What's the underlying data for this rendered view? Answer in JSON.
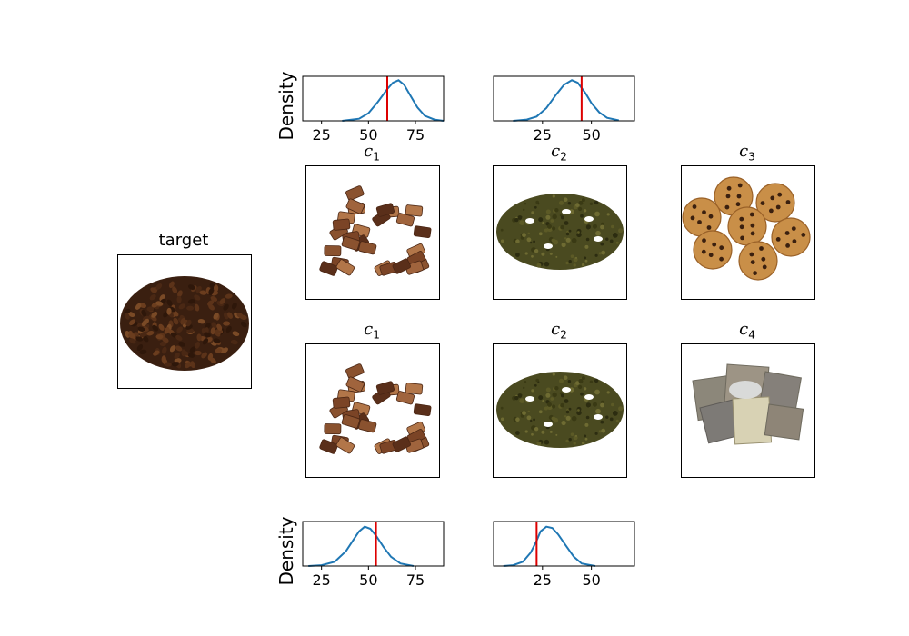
{
  "chart_data": [
    {
      "type": "line",
      "panel": "top-left",
      "ylabel": "Density",
      "xlabel": "",
      "xlim": [
        15,
        90
      ],
      "xticks": [
        25,
        50,
        75
      ],
      "series": [
        {
          "values": [
            [
              36,
              0.0
            ],
            [
              45,
              0.05
            ],
            [
              50,
              0.18
            ],
            [
              55,
              0.45
            ],
            [
              60,
              0.75
            ],
            [
              63,
              0.9
            ],
            [
              66,
              0.96
            ],
            [
              69,
              0.85
            ],
            [
              72,
              0.62
            ],
            [
              76,
              0.32
            ],
            [
              80,
              0.12
            ],
            [
              85,
              0.03
            ],
            [
              90,
              0.0
            ]
          ]
        }
      ],
      "marker": 60,
      "marker_color": "#dd0000",
      "line_color": "#1f77b4"
    },
    {
      "type": "line",
      "panel": "top-middle",
      "ylabel": "",
      "xlabel": "",
      "xlim": [
        0,
        72
      ],
      "xticks": [
        25,
        50
      ],
      "series": [
        {
          "values": [
            [
              10,
              0.0
            ],
            [
              17,
              0.03
            ],
            [
              22,
              0.1
            ],
            [
              27,
              0.3
            ],
            [
              32,
              0.62
            ],
            [
              36,
              0.85
            ],
            [
              40,
              0.96
            ],
            [
              43,
              0.9
            ],
            [
              47,
              0.65
            ],
            [
              50,
              0.42
            ],
            [
              54,
              0.2
            ],
            [
              58,
              0.07
            ],
            [
              64,
              0.01
            ]
          ]
        }
      ],
      "marker": 45,
      "marker_color": "#dd0000",
      "line_color": "#1f77b4"
    },
    {
      "type": "line",
      "panel": "bottom-left",
      "ylabel": "Density",
      "xlabel": "",
      "xlim": [
        15,
        90
      ],
      "xticks": [
        25,
        50,
        75
      ],
      "series": [
        {
          "values": [
            [
              18,
              0.0
            ],
            [
              25,
              0.02
            ],
            [
              32,
              0.1
            ],
            [
              38,
              0.35
            ],
            [
              42,
              0.62
            ],
            [
              45,
              0.82
            ],
            [
              48,
              0.93
            ],
            [
              51,
              0.88
            ],
            [
              54,
              0.72
            ],
            [
              58,
              0.45
            ],
            [
              62,
              0.22
            ],
            [
              67,
              0.06
            ],
            [
              74,
              0.0
            ]
          ]
        }
      ],
      "marker": 54,
      "marker_color": "#dd0000",
      "line_color": "#1f77b4"
    },
    {
      "type": "line",
      "panel": "bottom-middle",
      "ylabel": "",
      "xlabel": "",
      "xlim": [
        0,
        72
      ],
      "xticks": [
        25,
        50
      ],
      "series": [
        {
          "values": [
            [
              5,
              0.0
            ],
            [
              10,
              0.02
            ],
            [
              15,
              0.1
            ],
            [
              19,
              0.32
            ],
            [
              22,
              0.6
            ],
            [
              24,
              0.82
            ],
            [
              27,
              0.93
            ],
            [
              30,
              0.9
            ],
            [
              33,
              0.75
            ],
            [
              37,
              0.48
            ],
            [
              41,
              0.22
            ],
            [
              45,
              0.06
            ],
            [
              52,
              0.0
            ]
          ]
        }
      ],
      "marker": 22,
      "marker_color": "#dd0000",
      "line_color": "#1f77b4"
    }
  ],
  "images": {
    "target": {
      "title": "target",
      "icon": "coffee-beans-photo"
    },
    "row1": [
      {
        "label": "c",
        "sub": "1",
        "icon": "chocolate-pieces-photo"
      },
      {
        "label": "c",
        "sub": "2",
        "icon": "tea-leaves-photo"
      },
      {
        "label": "c",
        "sub": "3",
        "icon": "cookies-photo"
      }
    ],
    "row2": [
      {
        "label": "c",
        "sub": "1",
        "icon": "chocolate-pieces-photo"
      },
      {
        "label": "c",
        "sub": "2",
        "icon": "tea-leaves-photo"
      },
      {
        "label": "c",
        "sub": "4",
        "icon": "tea-bags-photo"
      }
    ]
  }
}
